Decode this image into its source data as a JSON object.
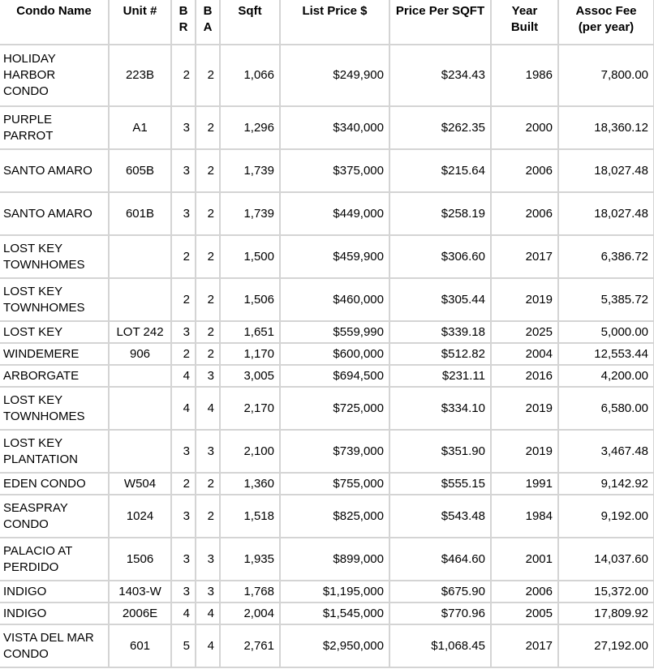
{
  "colors": {
    "grid_line": "#d4d4d4",
    "text": "#000000",
    "background": "#ffffff"
  },
  "table": {
    "columns": [
      {
        "key": "name",
        "label": "Condo Name"
      },
      {
        "key": "unit",
        "label": "Unit #"
      },
      {
        "key": "br",
        "label": "BR"
      },
      {
        "key": "ba",
        "label": "BA"
      },
      {
        "key": "sqft",
        "label": "Sqft"
      },
      {
        "key": "list_price",
        "label": "List Price $"
      },
      {
        "key": "price_per_sqft",
        "label": "Price Per SQFT"
      },
      {
        "key": "year_built",
        "label": "Year Built"
      },
      {
        "key": "assoc_fee",
        "label": "Assoc Fee (per year)"
      }
    ],
    "rows": [
      {
        "name": "HOLIDAY HARBOR CONDO",
        "unit": "223B",
        "br": "2",
        "ba": "2",
        "sqft": "1,066",
        "list_price": "$249,900",
        "price_per_sqft": "$234.43",
        "year_built": "1986",
        "assoc_fee": "7,800.00"
      },
      {
        "name": "PURPLE PARROT",
        "unit": "A1",
        "br": "3",
        "ba": "2",
        "sqft": "1,296",
        "list_price": "$340,000",
        "price_per_sqft": "$262.35",
        "year_built": "2000",
        "assoc_fee": "18,360.12"
      },
      {
        "name": "SANTO AMARO",
        "unit": "605B",
        "br": "3",
        "ba": "2",
        "sqft": "1,739",
        "list_price": "$375,000",
        "price_per_sqft": "$215.64",
        "year_built": "2006",
        "assoc_fee": "18,027.48"
      },
      {
        "name": "SANTO AMARO",
        "unit": "601B",
        "br": "3",
        "ba": "2",
        "sqft": "1,739",
        "list_price": "$449,000",
        "price_per_sqft": "$258.19",
        "year_built": "2006",
        "assoc_fee": "18,027.48"
      },
      {
        "name": "LOST KEY TOWNHOMES",
        "unit": "",
        "br": "2",
        "ba": "2",
        "sqft": "1,500",
        "list_price": "$459,900",
        "price_per_sqft": "$306.60",
        "year_built": "2017",
        "assoc_fee": "6,386.72"
      },
      {
        "name": "LOST KEY TOWNHOMES",
        "unit": "",
        "br": "2",
        "ba": "2",
        "sqft": "1,506",
        "list_price": "$460,000",
        "price_per_sqft": "$305.44",
        "year_built": "2019",
        "assoc_fee": "5,385.72"
      },
      {
        "name": "LOST KEY",
        "unit": "LOT 242",
        "br": "3",
        "ba": "2",
        "sqft": "1,651",
        "list_price": "$559,990",
        "price_per_sqft": "$339.18",
        "year_built": "2025",
        "assoc_fee": "5,000.00"
      },
      {
        "name": "WINDEMERE",
        "unit": "906",
        "br": "2",
        "ba": "2",
        "sqft": "1,170",
        "list_price": "$600,000",
        "price_per_sqft": "$512.82",
        "year_built": "2004",
        "assoc_fee": "12,553.44"
      },
      {
        "name": "ARBORGATE",
        "unit": "",
        "br": "4",
        "ba": "3",
        "sqft": "3,005",
        "list_price": "$694,500",
        "price_per_sqft": "$231.11",
        "year_built": "2016",
        "assoc_fee": "4,200.00"
      },
      {
        "name": "LOST KEY TOWNHOMES",
        "unit": "",
        "br": "4",
        "ba": "4",
        "sqft": "2,170",
        "list_price": "$725,000",
        "price_per_sqft": "$334.10",
        "year_built": "2019",
        "assoc_fee": "6,580.00"
      },
      {
        "name": "LOST KEY PLANTATION",
        "unit": "",
        "br": "3",
        "ba": "3",
        "sqft": "2,100",
        "list_price": "$739,000",
        "price_per_sqft": "$351.90",
        "year_built": "2019",
        "assoc_fee": "3,467.48"
      },
      {
        "name": "EDEN CONDO",
        "unit": "W504",
        "br": "2",
        "ba": "2",
        "sqft": "1,360",
        "list_price": "$755,000",
        "price_per_sqft": "$555.15",
        "year_built": "1991",
        "assoc_fee": "9,142.92"
      },
      {
        "name": "SEASPRAY CONDO",
        "unit": "1024",
        "br": "3",
        "ba": "2",
        "sqft": "1,518",
        "list_price": "$825,000",
        "price_per_sqft": "$543.48",
        "year_built": "1984",
        "assoc_fee": "9,192.00"
      },
      {
        "name": "PALACIO AT PERDIDO",
        "unit": "1506",
        "br": "3",
        "ba": "3",
        "sqft": "1,935",
        "list_price": "$899,000",
        "price_per_sqft": "$464.60",
        "year_built": "2001",
        "assoc_fee": "14,037.60"
      },
      {
        "name": "INDIGO",
        "unit": "1403-W",
        "br": "3",
        "ba": "3",
        "sqft": "1,768",
        "list_price": "$1,195,000",
        "price_per_sqft": "$675.90",
        "year_built": "2006",
        "assoc_fee": "15,372.00"
      },
      {
        "name": "INDIGO",
        "unit": "2006E",
        "br": "4",
        "ba": "4",
        "sqft": "2,004",
        "list_price": "$1,545,000",
        "price_per_sqft": "$770.96",
        "year_built": "2005",
        "assoc_fee": "17,809.92"
      },
      {
        "name": "VISTA DEL MAR CONDO",
        "unit": "601",
        "br": "5",
        "ba": "4",
        "sqft": "2,761",
        "list_price": "$2,950,000",
        "price_per_sqft": "$1,068.45",
        "year_built": "2017",
        "assoc_fee": "27,192.00"
      }
    ]
  }
}
